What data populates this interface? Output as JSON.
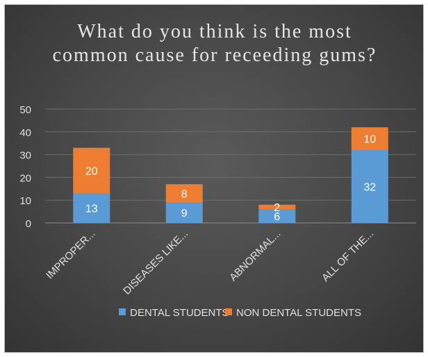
{
  "chart_data": {
    "type": "bar",
    "stacked": true,
    "title": "What do you think is the most common cause for receeding gums?",
    "categories": [
      "IMPROPER...",
      "DISEASES LIKE...",
      "ABNORMAL...",
      "ALL OF THE..."
    ],
    "series": [
      {
        "name": "DENTAL STUDENTS",
        "color": "#5b9bd5",
        "values": [
          13,
          9,
          6,
          32
        ]
      },
      {
        "name": "NON DENTAL STUDENTS",
        "color": "#ed7d31",
        "values": [
          20,
          8,
          2,
          10
        ]
      }
    ],
    "ylim": [
      0,
      50
    ],
    "yticks": [
      0,
      10,
      20,
      30,
      40,
      50
    ],
    "grid": true,
    "legend": "bottom"
  }
}
